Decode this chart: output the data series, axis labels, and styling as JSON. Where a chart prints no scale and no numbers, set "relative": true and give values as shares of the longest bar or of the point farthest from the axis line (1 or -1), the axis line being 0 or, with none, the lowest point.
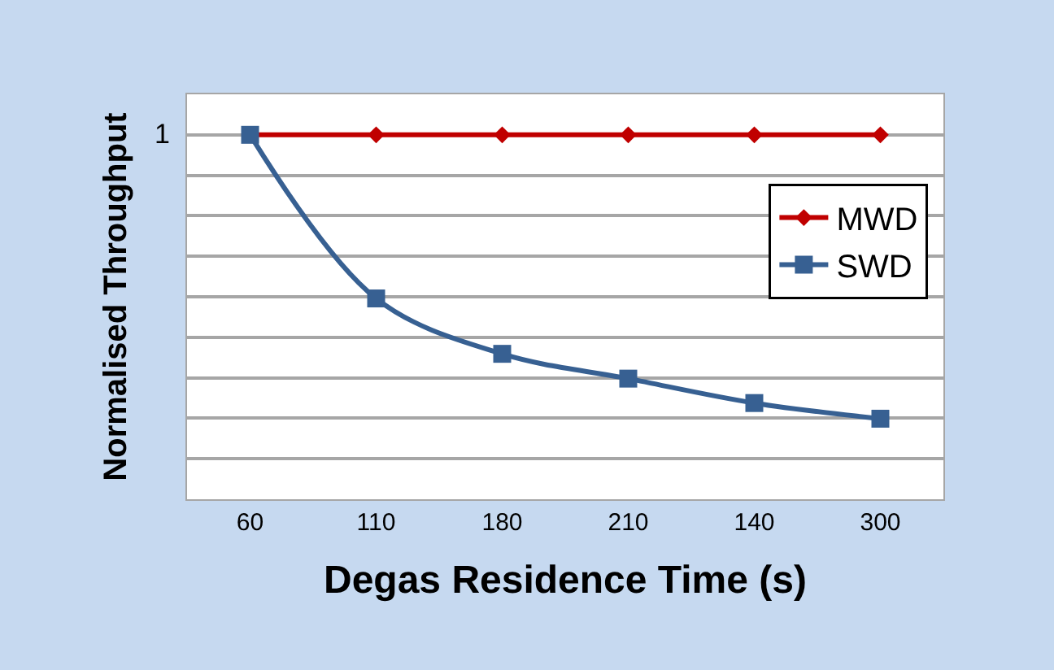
{
  "chart_data": {
    "type": "line",
    "relative": true,
    "xlabel": "Degas Residence Time (s)",
    "ylabel": "Normalised Throughput",
    "categories": [
      "60",
      "110",
      "180",
      "210",
      "140",
      "300"
    ],
    "series": [
      {
        "name": "MWD",
        "color": "#c00000",
        "values": [
          1,
          1,
          1,
          1,
          1,
          1
        ],
        "marker": "diamond"
      },
      {
        "name": "SWD",
        "color": "#376092",
        "values": [
          1,
          0.551,
          0.399,
          0.331,
          0.264,
          0.221
        ],
        "marker": "square"
      }
    ],
    "annotations": [
      "1"
    ],
    "grid": "y",
    "legend": "right",
    "line_style": "solid"
  }
}
